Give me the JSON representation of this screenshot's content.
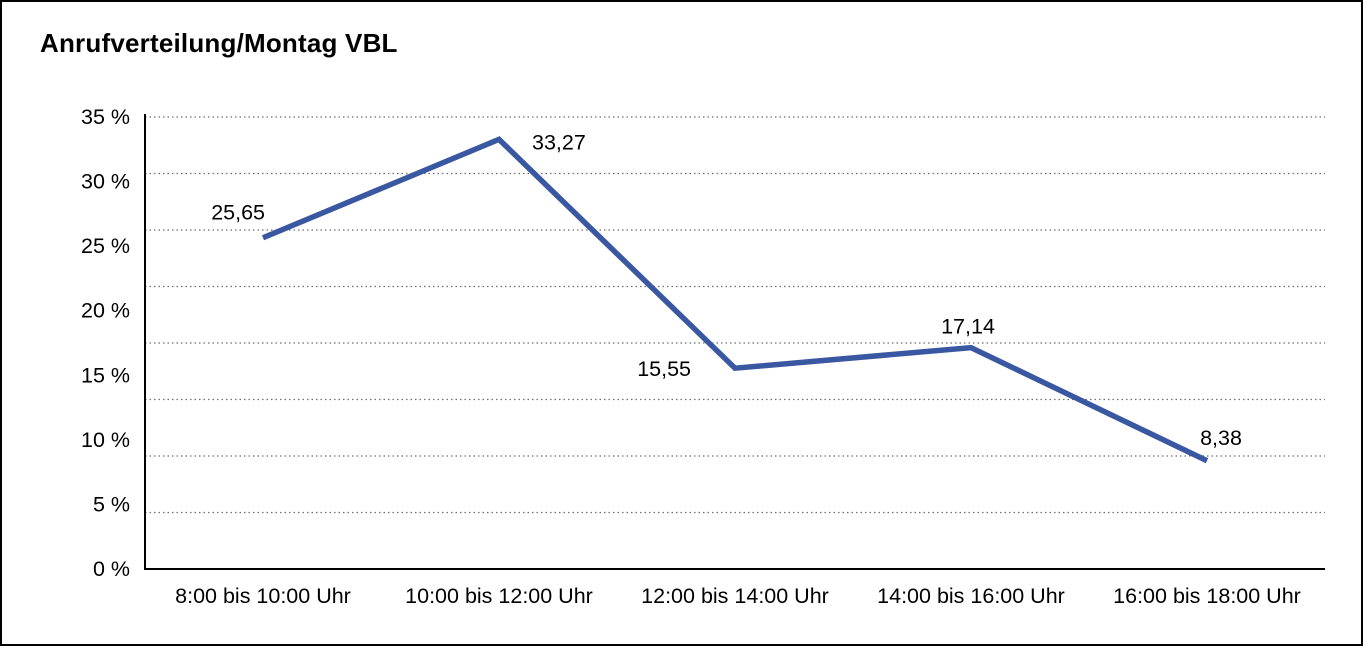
{
  "chart_data": {
    "type": "line",
    "title": "Anrufverteilung/Montag VBL",
    "categories": [
      "8:00 bis 10:00 Uhr",
      "10:00 bis 12:00 Uhr",
      "12:00 bis 14:00 Uhr",
      "14:00 bis 16:00 Uhr",
      "16:00 bis 18:00 Uhr"
    ],
    "values": [
      25.65,
      33.27,
      15.55,
      17.14,
      8.38
    ],
    "point_labels": [
      "25,65",
      "33,27",
      "15,55",
      "17,14",
      "8,38"
    ],
    "xlabel": "",
    "ylabel": "",
    "ylim": [
      0,
      35
    ],
    "ytick_step": 5,
    "ytick_labels": [
      "35 %",
      "30 %",
      "25 %",
      "20 %",
      "15 %",
      "10 %",
      "5 %",
      "0 %"
    ],
    "grid": "horizontal-dotted",
    "grid_intervals": 8,
    "legend": "none",
    "colors": {
      "line": "#3A57A2",
      "axis": "#000000",
      "grid": "#6E6E6E",
      "text": "#000000",
      "background": "#FFFFFF",
      "border": "#000000"
    }
  }
}
